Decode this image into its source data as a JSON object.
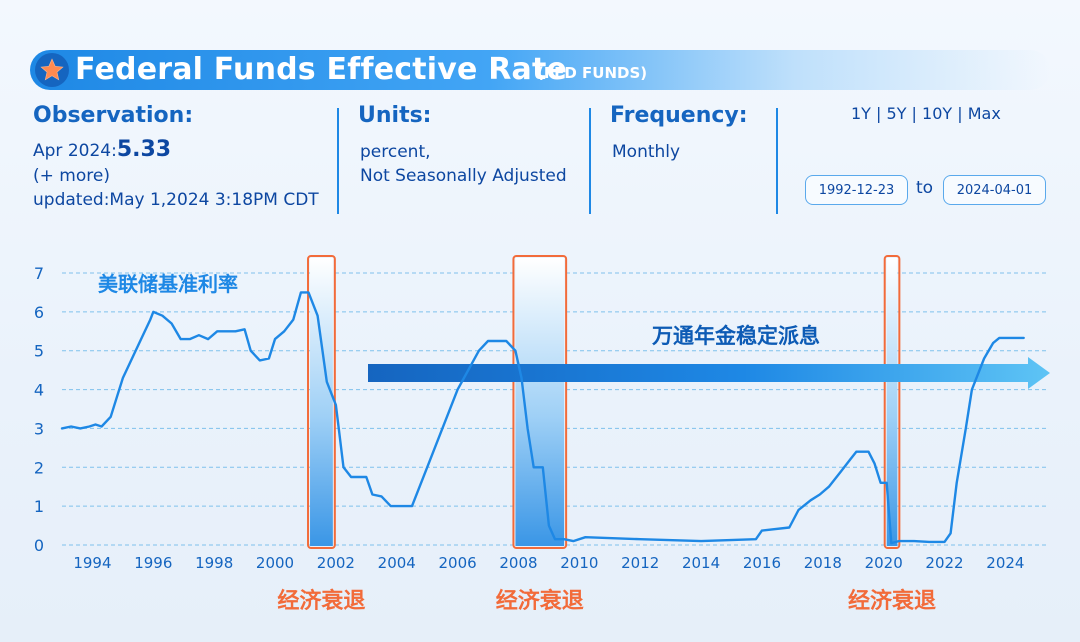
{
  "header": {
    "title": "Federal Funds Effective Rate",
    "series_id": "(FED FUNDS)",
    "observation_label": "Observation:",
    "observation_date": "Apr 2024:",
    "observation_value": "5.33",
    "more": "(+ more)",
    "updated": "updated:May 1,2024 3:18PM CDT",
    "units_label": "Units:",
    "units_line1": "percent,",
    "units_line2": "Not Seasonally Adjusted",
    "frequency_label": "Frequency:",
    "frequency_value": "Monthly",
    "range_links": "1Y | 5Y | 10Y | Max",
    "start_date": "1992-12-23",
    "to_label": "to",
    "end_date": "2024-04-01",
    "accent_color": "#1e88e5"
  },
  "chart_data": {
    "type": "line",
    "xlim": [
      1993.0,
      2025.4
    ],
    "ylim": [
      0,
      7
    ],
    "yticks": [
      0,
      1,
      2,
      3,
      4,
      5,
      6,
      7
    ],
    "xticks": [
      1994,
      1996,
      1998,
      2000,
      2002,
      2004,
      2006,
      2008,
      2010,
      2012,
      2014,
      2016,
      2018,
      2020,
      2022,
      2024
    ],
    "grid": "horizontal dashed",
    "series": [
      {
        "color": "#1e88e5",
        "points": [
          [
            1993.0,
            3.0
          ],
          [
            1993.3,
            3.05
          ],
          [
            1993.6,
            3.0
          ],
          [
            1993.9,
            3.05
          ],
          [
            1994.1,
            3.1
          ],
          [
            1994.3,
            3.05
          ],
          [
            1994.6,
            3.3
          ],
          [
            1994.8,
            3.8
          ],
          [
            1995.0,
            4.3
          ],
          [
            1995.3,
            4.8
          ],
          [
            1995.6,
            5.3
          ],
          [
            1995.9,
            5.8
          ],
          [
            1996.0,
            6.0
          ],
          [
            1996.3,
            5.9
          ],
          [
            1996.6,
            5.7
          ],
          [
            1996.9,
            5.3
          ],
          [
            1997.2,
            5.3
          ],
          [
            1997.5,
            5.4
          ],
          [
            1997.8,
            5.3
          ],
          [
            1998.1,
            5.5
          ],
          [
            1998.4,
            5.5
          ],
          [
            1998.7,
            5.5
          ],
          [
            1999.0,
            5.55
          ],
          [
            1999.2,
            5.0
          ],
          [
            1999.5,
            4.75
          ],
          [
            1999.8,
            4.8
          ],
          [
            2000.0,
            5.3
          ],
          [
            2000.3,
            5.5
          ],
          [
            2000.6,
            5.8
          ],
          [
            2000.85,
            6.5
          ],
          [
            2001.1,
            6.5
          ],
          [
            2001.4,
            5.9
          ],
          [
            2001.7,
            4.2
          ],
          [
            2002.0,
            3.6
          ],
          [
            2002.25,
            2.0
          ],
          [
            2002.5,
            1.75
          ],
          [
            2002.75,
            1.75
          ],
          [
            2003.0,
            1.75
          ],
          [
            2003.2,
            1.3
          ],
          [
            2003.5,
            1.25
          ],
          [
            2003.8,
            1.0
          ],
          [
            2004.3,
            1.0
          ],
          [
            2004.5,
            1.0
          ],
          [
            2005.0,
            2.0
          ],
          [
            2006.0,
            4.0
          ],
          [
            2006.7,
            5.0
          ],
          [
            2007.0,
            5.25
          ],
          [
            2007.6,
            5.25
          ],
          [
            2007.9,
            5.0
          ],
          [
            2008.1,
            4.3
          ],
          [
            2008.3,
            3.0
          ],
          [
            2008.5,
            2.0
          ],
          [
            2008.8,
            2.0
          ],
          [
            2009.0,
            0.5
          ],
          [
            2009.2,
            0.15
          ],
          [
            2009.5,
            0.15
          ],
          [
            2009.8,
            0.1
          ],
          [
            2010.2,
            0.2
          ],
          [
            2012.0,
            0.15
          ],
          [
            2014.0,
            0.1
          ],
          [
            2015.8,
            0.15
          ],
          [
            2016.0,
            0.37
          ],
          [
            2016.9,
            0.45
          ],
          [
            2017.2,
            0.9
          ],
          [
            2017.6,
            1.15
          ],
          [
            2017.9,
            1.3
          ],
          [
            2018.2,
            1.5
          ],
          [
            2018.6,
            1.9
          ],
          [
            2018.9,
            2.2
          ],
          [
            2019.1,
            2.4
          ],
          [
            2019.5,
            2.4
          ],
          [
            2019.7,
            2.1
          ],
          [
            2019.9,
            1.6
          ],
          [
            2020.1,
            1.6
          ],
          [
            2020.25,
            0.05
          ],
          [
            2020.5,
            0.1
          ],
          [
            2021.0,
            0.1
          ],
          [
            2021.5,
            0.08
          ],
          [
            2022.0,
            0.08
          ],
          [
            2022.2,
            0.3
          ],
          [
            2022.4,
            1.6
          ],
          [
            2022.7,
            3.0
          ],
          [
            2022.9,
            4.0
          ],
          [
            2023.3,
            4.8
          ],
          [
            2023.6,
            5.2
          ],
          [
            2023.8,
            5.33
          ],
          [
            2024.6,
            5.33
          ]
        ]
      }
    ],
    "recessions": [
      {
        "start": 2001.15,
        "end": 2001.9,
        "label": "经济衰退"
      },
      {
        "start": 2007.9,
        "end": 2009.5,
        "label": "经济衰退"
      },
      {
        "start": 2020.1,
        "end": 2020.45,
        "label": ""
      }
    ],
    "recession_labels": [
      "经济衰退",
      "经济衰退",
      "经济衰退"
    ],
    "annotations": {
      "series_label": "美联储基准利率",
      "arrow_label": "万通年金稳定派息"
    },
    "colors": {
      "line": "#1e88e5",
      "axis_text": "#1565c0",
      "grid": "#7fc1ec",
      "recession_frame": "#f26b3a",
      "recession_label": "#f26b3a",
      "arrow": "#1e7fe0"
    }
  }
}
